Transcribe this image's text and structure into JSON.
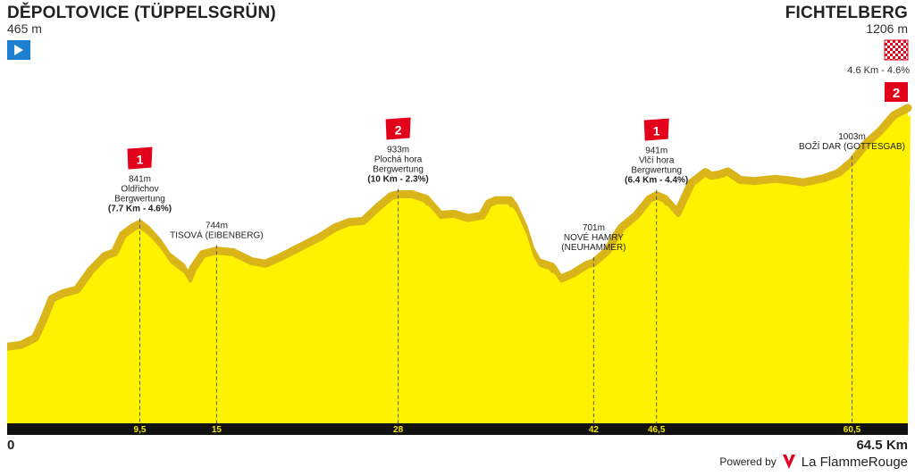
{
  "start": {
    "name": "DĚPOLTOVICE (TÜPPELSGRÜN)",
    "elevation": "465 m"
  },
  "finish": {
    "name": "FICHTELBERG",
    "elevation": "1206 m",
    "climb_info": "4.6 Km - 4.6%",
    "climb_category": "2"
  },
  "distance": {
    "start_label": "0",
    "end_label": "64.5 Km"
  },
  "footer": {
    "powered_by": "Powered by",
    "brand": "La Flamme",
    "brand_bold": "Rouge"
  },
  "colors": {
    "profile_fill": "#fff200",
    "profile_shade": "#d9b51a",
    "axis_bar": "#111111",
    "badge": "#e3001b",
    "start_flag": "#1f7fd0"
  },
  "chart_data": {
    "type": "area",
    "x_unit": "km",
    "y_unit": "m",
    "xlim": [
      0,
      64.5
    ],
    "ylim": [
      250,
      1200
    ],
    "profile": [
      [
        0,
        465
      ],
      [
        1,
        470
      ],
      [
        2,
        490
      ],
      [
        2.6,
        540
      ],
      [
        3.2,
        600
      ],
      [
        4,
        615
      ],
      [
        5,
        625
      ],
      [
        6,
        680
      ],
      [
        7,
        720
      ],
      [
        7.7,
        730
      ],
      [
        8.3,
        780
      ],
      [
        9,
        800
      ],
      [
        9.5,
        810
      ],
      [
        10,
        795
      ],
      [
        10.8,
        760
      ],
      [
        11.5,
        720
      ],
      [
        12.5,
        690
      ],
      [
        13,
        655
      ],
      [
        13.3,
        685
      ],
      [
        14,
        725
      ],
      [
        15,
        735
      ],
      [
        16.2,
        730
      ],
      [
        17.5,
        705
      ],
      [
        18.5,
        698
      ],
      [
        19.5,
        715
      ],
      [
        20.5,
        735
      ],
      [
        21.5,
        755
      ],
      [
        22.5,
        775
      ],
      [
        23.5,
        800
      ],
      [
        24.5,
        815
      ],
      [
        25.5,
        818
      ],
      [
        26.5,
        855
      ],
      [
        27.5,
        888
      ],
      [
        28,
        893
      ],
      [
        29,
        893
      ],
      [
        30,
        880
      ],
      [
        31,
        835
      ],
      [
        32,
        838
      ],
      [
        33,
        826
      ],
      [
        34,
        833
      ],
      [
        34.5,
        868
      ],
      [
        35,
        876
      ],
      [
        36,
        876
      ],
      [
        36.3,
        860
      ],
      [
        37,
        800
      ],
      [
        37.5,
        738
      ],
      [
        38,
        703
      ],
      [
        39,
        690
      ],
      [
        39.6,
        655
      ],
      [
        40.5,
        670
      ],
      [
        41.5,
        695
      ],
      [
        42,
        701
      ],
      [
        43,
        735
      ],
      [
        43.5,
        770
      ],
      [
        44,
        800
      ],
      [
        45,
        832
      ],
      [
        46,
        880
      ],
      [
        46.5,
        890
      ],
      [
        47.1,
        880
      ],
      [
        48,
        840
      ],
      [
        49,
        925
      ],
      [
        50,
        955
      ],
      [
        50.4,
        945
      ],
      [
        51,
        948
      ],
      [
        51.6,
        957
      ],
      [
        52.5,
        933
      ],
      [
        53.5,
        930
      ],
      [
        55,
        936
      ],
      [
        56,
        932
      ],
      [
        57,
        926
      ],
      [
        58.5,
        938
      ],
      [
        59.5,
        952
      ],
      [
        60.5,
        985
      ],
      [
        61.5,
        1035
      ],
      [
        62.5,
        1070
      ],
      [
        63.5,
        1115
      ],
      [
        64.5,
        1135
      ]
    ],
    "km_ticks": [
      {
        "km": 9.5,
        "label": "9,5"
      },
      {
        "km": 15,
        "label": "15"
      },
      {
        "km": 28,
        "label": "28"
      },
      {
        "km": 42,
        "label": "42"
      },
      {
        "km": 46.5,
        "label": "46,5"
      },
      {
        "km": 60.5,
        "label": "60,5"
      }
    ],
    "points": [
      {
        "km": 9.5,
        "elevation": 810,
        "category": "1",
        "lines": [
          "841m",
          "Oldřichov",
          "Bergwertung"
        ],
        "bold": "(7.7 Km - 4.6%)"
      },
      {
        "km": 15,
        "elevation": 735,
        "category": null,
        "lines": [
          "744m",
          "TISOVÁ (EIBENBERG)"
        ],
        "bold": null
      },
      {
        "km": 28,
        "elevation": 893,
        "category": "2",
        "lines": [
          "933m",
          "Plochá hora",
          "Bergwertung"
        ],
        "bold": "(10 Km - 2.3%)"
      },
      {
        "km": 42,
        "elevation": 701,
        "category": null,
        "lines": [
          "701m",
          "NOVÉ HAMRY",
          "(NEUHAMMER)"
        ],
        "bold": null
      },
      {
        "km": 46.5,
        "elevation": 890,
        "category": "1",
        "lines": [
          "941m",
          "Vlčí hora",
          "Bergwertung"
        ],
        "bold": "(6.4 Km - 4.4%)"
      },
      {
        "km": 60.5,
        "elevation": 985,
        "category": null,
        "lines": [
          "1003m",
          "BOŽÍ DAR (GOTTESGAB)"
        ],
        "bold": null
      }
    ]
  }
}
